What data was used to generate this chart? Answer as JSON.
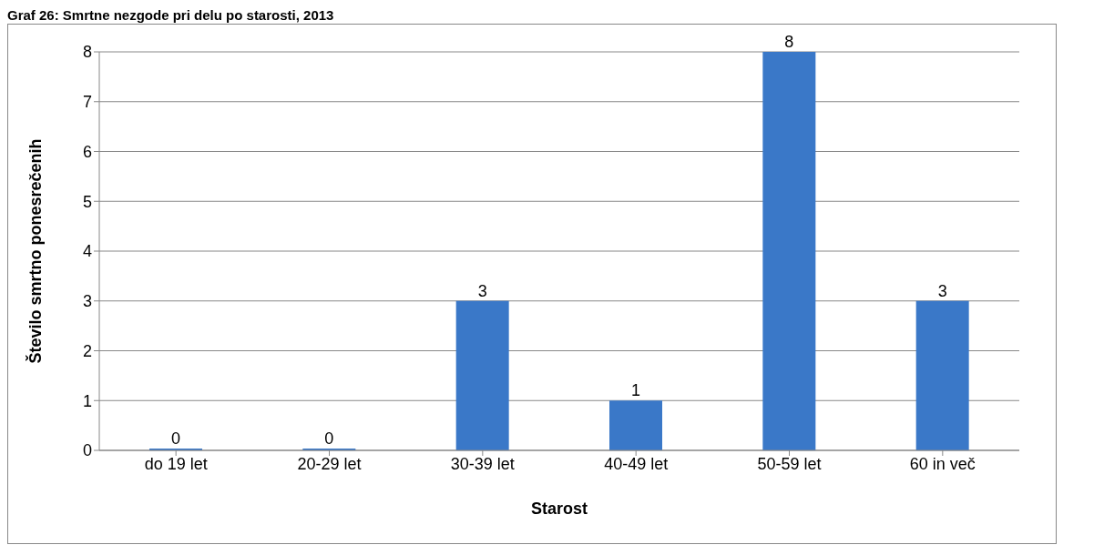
{
  "chart_data": {
    "type": "bar",
    "title": "Graf 26: Smrtne nezgode pri delu po starosti, 2013",
    "xlabel": "Starost",
    "ylabel": "Število smrtno ponesrečenih",
    "categories": [
      "do 19 let",
      "20-29 let",
      "30-39 let",
      "40-49 let",
      "50-59 let",
      "60 in več"
    ],
    "values": [
      0,
      0,
      3,
      1,
      8,
      3
    ],
    "color": "#3a78c8",
    "ylim": [
      0,
      8
    ],
    "yticks": [
      0,
      1,
      2,
      3,
      4,
      5,
      6,
      7,
      8
    ],
    "grid": "y",
    "data_labels": true
  }
}
